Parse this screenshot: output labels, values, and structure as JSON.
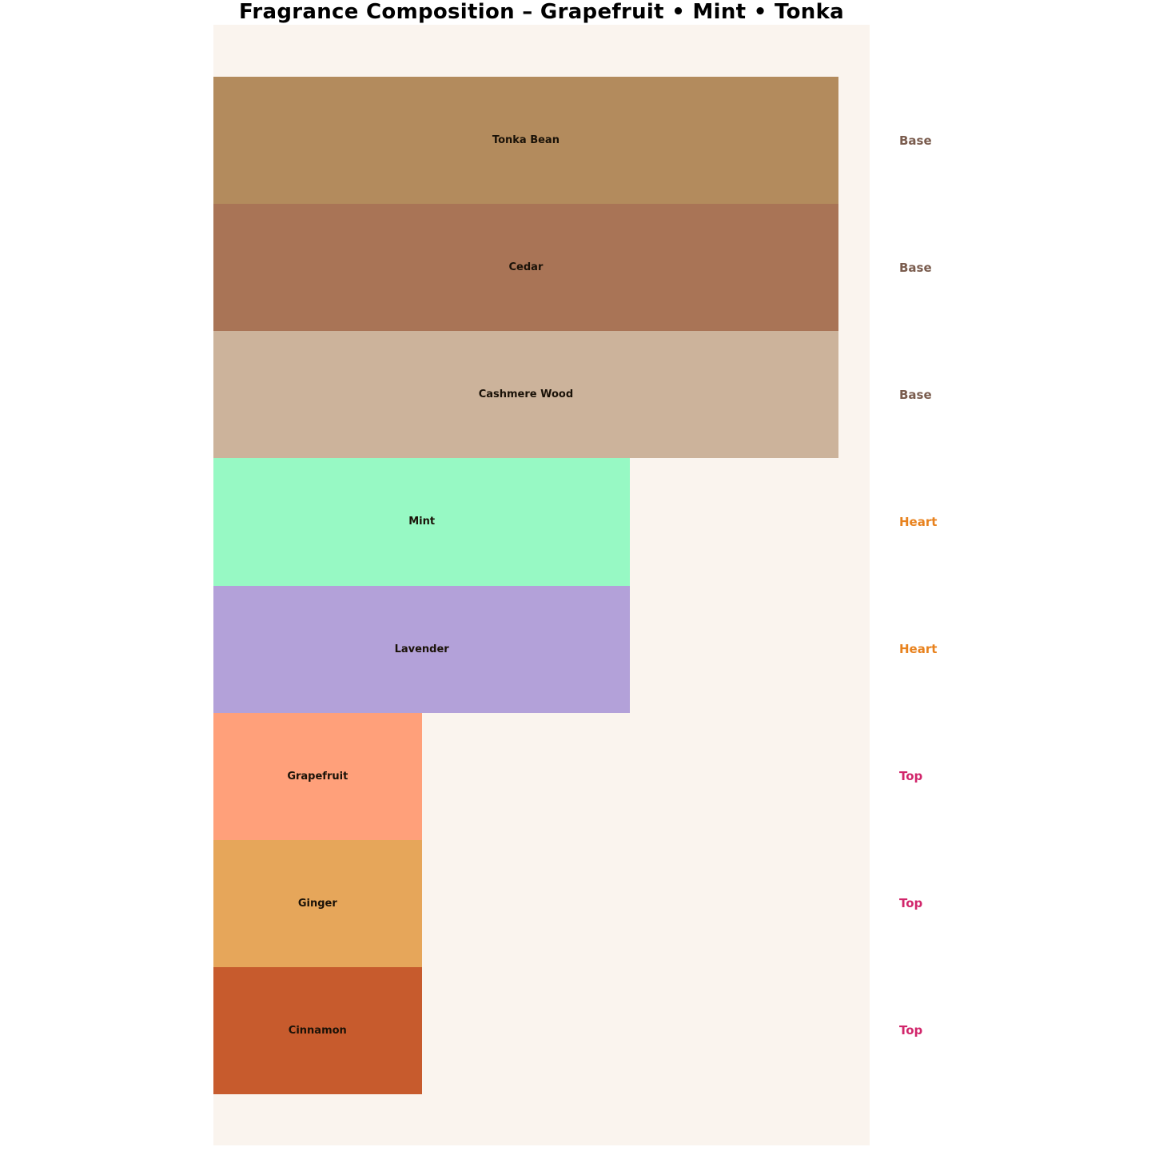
{
  "chart_data": {
    "type": "bar",
    "orientation": "horizontal",
    "title": "Fragrance Composition – Grapefruit • Mint • Tonka",
    "xlabel": "",
    "ylabel": "",
    "xlim": [
      0,
      3.15
    ],
    "grid": false,
    "legend": "none",
    "axes_visible": false,
    "plot_bg_color": "#faf4ee",
    "categories": [
      "Tonka Bean",
      "Cedar",
      "Cashmere Wood",
      "Mint",
      "Lavender",
      "Grapefruit",
      "Ginger",
      "Cinnamon"
    ],
    "values": [
      3,
      3,
      3,
      2,
      2,
      1,
      1,
      1
    ],
    "bars": [
      {
        "label": "Tonka Bean",
        "stage": "Base",
        "value": 3,
        "color": "#b38b5d"
      },
      {
        "label": "Cedar",
        "stage": "Base",
        "value": 3,
        "color": "#a97456"
      },
      {
        "label": "Cashmere Wood",
        "stage": "Base",
        "value": 3,
        "color": "#ccb39b"
      },
      {
        "label": "Mint",
        "stage": "Heart",
        "value": 2,
        "color": "#97f9c4"
      },
      {
        "label": "Lavender",
        "stage": "Heart",
        "value": 2,
        "color": "#b3a1d9"
      },
      {
        "label": "Grapefruit",
        "stage": "Top",
        "value": 1,
        "color": "#ffa07a"
      },
      {
        "label": "Ginger",
        "stage": "Top",
        "value": 1,
        "color": "#e6a65a"
      },
      {
        "label": "Cinnamon",
        "stage": "Top",
        "value": 1,
        "color": "#c75b2d"
      }
    ],
    "stage_colors": {
      "Base": "#7a5c4e",
      "Heart": "#e8821e",
      "Top": "#d1266b"
    }
  }
}
